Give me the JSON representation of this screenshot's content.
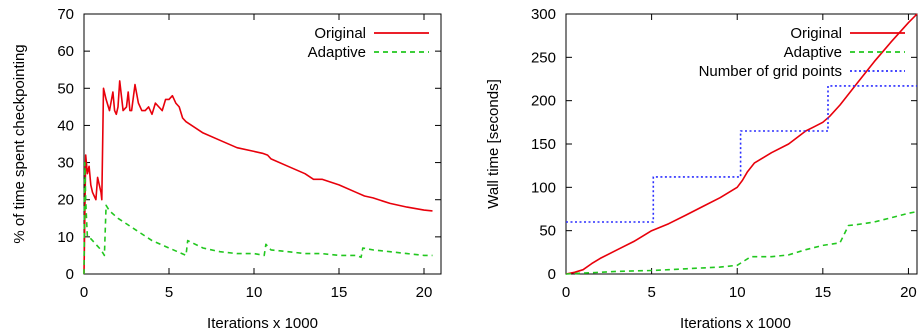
{
  "chart_data": [
    {
      "type": "line",
      "xlabel": "Iterations x 1000",
      "ylabel": "% of time spent checkpointing",
      "xlim": [
        0,
        21
      ],
      "ylim": [
        0,
        70
      ],
      "xticks": [
        0,
        5,
        10,
        15,
        20
      ],
      "yticks": [
        0,
        10,
        20,
        30,
        40,
        50,
        60,
        70
      ],
      "legend_position": "top-right",
      "grid": false,
      "series": [
        {
          "name": "Original",
          "color": "#e8000b",
          "dash": "solid",
          "x": [
            0,
            0.1,
            0.2,
            0.3,
            0.4,
            0.5,
            0.6,
            0.7,
            0.8,
            0.9,
            1.0,
            1.05,
            1.15,
            1.3,
            1.5,
            1.7,
            1.8,
            1.9,
            2.0,
            2.1,
            2.3,
            2.5,
            2.6,
            2.7,
            2.8,
            3.0,
            3.2,
            3.4,
            3.6,
            3.8,
            4.0,
            4.2,
            4.4,
            4.6,
            4.8,
            5.0,
            5.2,
            5.4,
            5.6,
            5.8,
            6.0,
            7,
            8,
            9,
            10,
            10.5,
            10.8,
            11,
            12,
            13,
            13.5,
            14,
            15,
            16,
            16.5,
            17,
            18,
            19,
            20,
            20.5
          ],
          "y": [
            0,
            32,
            27,
            29,
            24,
            22,
            21,
            20,
            26,
            24,
            22,
            20,
            50,
            47,
            44,
            49,
            44,
            43,
            45,
            52,
            44,
            45,
            49,
            44,
            44,
            51,
            46,
            44,
            44,
            45,
            43,
            46,
            45,
            44,
            47,
            47,
            48,
            46,
            45,
            42,
            41,
            38,
            36,
            34,
            33,
            32.5,
            32,
            31,
            29,
            27,
            25.5,
            25.5,
            24,
            22,
            21,
            20.5,
            19,
            18,
            17.2,
            17
          ]
        },
        {
          "name": "Adaptive",
          "color": "#22c71f",
          "dash": "dashed",
          "x": [
            0,
            0.05,
            0.1,
            0.15,
            0.2,
            0.4,
            0.7,
            1.0,
            1.2,
            1.3,
            1.5,
            2.0,
            3.0,
            4.0,
            5.0,
            5.5,
            6.0,
            6.1,
            7,
            8,
            9,
            10,
            10.6,
            10.7,
            11,
            12,
            13,
            14,
            15,
            16,
            16.3,
            16.4,
            17,
            18,
            19,
            20,
            20.5
          ],
          "y": [
            0,
            30,
            20,
            15,
            10,
            9.5,
            8,
            6.5,
            5,
            18.5,
            17,
            15,
            12,
            9,
            7,
            6,
            5,
            9,
            7,
            6,
            5.5,
            5.5,
            5,
            8,
            6.5,
            6,
            5.5,
            5.5,
            5,
            5,
            4.5,
            7,
            6.5,
            6,
            5.5,
            5,
            5
          ]
        }
      ]
    },
    {
      "type": "line",
      "xlabel": "Iterations x 1000",
      "ylabel": "Wall time [seconds]",
      "xlim": [
        0,
        20.5
      ],
      "ylim": [
        0,
        300
      ],
      "xticks": [
        0,
        5,
        10,
        15,
        20
      ],
      "yticks": [
        0,
        50,
        100,
        150,
        200,
        250,
        300
      ],
      "legend_position": "top-right",
      "grid": false,
      "series": [
        {
          "name": "Original",
          "color": "#e8000b",
          "dash": "solid",
          "x": [
            0,
            0.5,
            1,
            1.5,
            2,
            3,
            4,
            5,
            6,
            7,
            8,
            9,
            10,
            10.3,
            10.6,
            11,
            12,
            13,
            14,
            14.5,
            15,
            15.4,
            16,
            17,
            18,
            19,
            20,
            20.5
          ],
          "y": [
            0,
            2,
            5,
            12,
            18,
            28,
            38,
            50,
            58,
            68,
            78,
            88,
            100,
            108,
            118,
            128,
            140,
            150,
            165,
            170,
            175,
            182,
            195,
            220,
            245,
            268,
            290,
            300
          ]
        },
        {
          "name": "Adaptive",
          "color": "#22c71f",
          "dash": "dashed",
          "x": [
            0,
            3,
            5,
            6,
            7,
            8,
            9,
            10,
            10.8,
            12,
            13,
            14,
            15,
            16,
            16.5,
            17,
            18,
            19,
            20,
            20.5
          ],
          "y": [
            0,
            3,
            4,
            5,
            6,
            7,
            8,
            10,
            20,
            20,
            22,
            28,
            33,
            36,
            56,
            57,
            60,
            65,
            70,
            72
          ]
        },
        {
          "name": "Number of grid points",
          "color": "#2c2fff",
          "dash": "dotted",
          "x": [
            0,
            5.1,
            5.1,
            10.2,
            10.2,
            15.3,
            15.3,
            20.5
          ],
          "y": [
            60,
            60,
            112,
            112,
            165,
            165,
            217,
            217
          ]
        }
      ]
    }
  ]
}
